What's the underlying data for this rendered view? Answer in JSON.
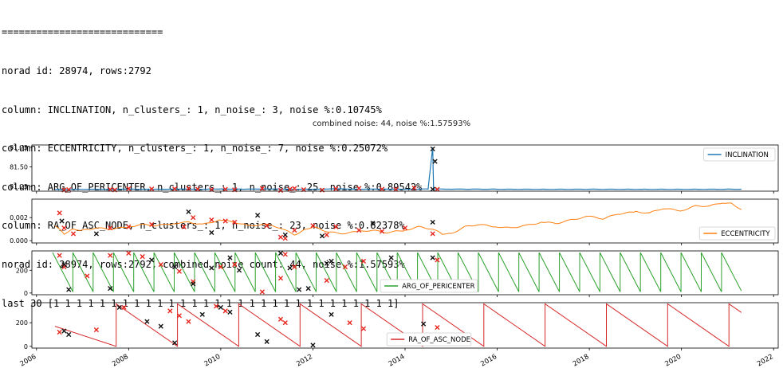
{
  "console": {
    "lines": [
      "============================",
      "norad id: 28974, rows:2792",
      "column: INCLINATION, n_clusters_: 1, n_noise_: 3, noise %:0.10745%",
      "column: ECCENTRICITY, n_clusters_: 1, n_noise_: 7, noise %:0.25072%",
      "column: ARG_OF_PERICENTER, n_clusters_: 1, n_noise_: 25, noise %:0.89542%",
      "column: RA_OF_ASC_NODE, n_clusters_: 1, n_noise_: 23, noise %:0.82378%",
      "norad id: 28974, rows:2792, combined noise count: 44, noise %:1.57593%",
      "last 30 [1 1 1 1 1 1 1 1 1 1 1 1 1 1 1 1 1 1 1 1 1 1 1 1 1 1 1 1 1 1]"
    ]
  },
  "chart_data": {
    "type": "line",
    "title": "combined noise: 44, noise %:1.57593%",
    "x_ticks": [
      "2006",
      "2008",
      "2010",
      "2012",
      "2014",
      "2016",
      "2018",
      "2020",
      "2022"
    ],
    "xlim": [
      2005.9,
      2022.1
    ],
    "panels": [
      {
        "series_name": "INCLINATION",
        "color": "#1f77b4",
        "legend": "upper right",
        "ylim": [
          81.19,
          81.78
        ],
        "y_ticks": [
          "81.25",
          "81.50",
          "81.75"
        ],
        "y_tick_values": [
          81.25,
          81.5,
          81.75
        ],
        "x": [
          2006.4,
          2007.0,
          2007.5,
          2008.0,
          2008.5,
          2009.0,
          2009.5,
          2010.0,
          2010.5,
          2011.0,
          2011.5,
          2012.0,
          2012.5,
          2013.0,
          2013.5,
          2014.0,
          2014.5,
          2014.6,
          2014.62,
          2014.64,
          2015.0,
          2016.0,
          2017.0,
          2018.0,
          2019.0,
          2020.0,
          2021.0,
          2021.3
        ],
        "y": [
          81.21,
          81.214,
          81.212,
          81.216,
          81.213,
          81.217,
          81.214,
          81.218,
          81.215,
          81.219,
          81.216,
          81.214,
          81.22,
          81.215,
          81.217,
          81.214,
          81.218,
          81.75,
          81.215,
          81.218,
          81.216,
          81.215,
          81.214,
          81.215,
          81.214,
          81.214,
          81.215,
          81.215
        ],
        "noise_red": {
          "x": [
            2006.6,
            2006.7,
            2007.6,
            2007.7,
            2008.0,
            2008.5,
            2009.0,
            2009.3,
            2009.5,
            2009.8,
            2010.1,
            2010.3,
            2010.9,
            2011.3,
            2011.5,
            2011.6,
            2011.8,
            2012.2,
            2012.5,
            2013.0,
            2013.5,
            2013.8,
            2014.2,
            2014.7
          ],
          "y": [
            81.205,
            81.21,
            81.212,
            81.206,
            81.222,
            81.218,
            81.22,
            81.225,
            81.216,
            81.21,
            81.214,
            81.208,
            81.225,
            81.2,
            81.214,
            81.225,
            81.21,
            81.204,
            81.22,
            81.226,
            81.216,
            81.212,
            81.23,
            81.214
          ]
        },
        "noise_black": {
          "x": [
            2014.6,
            2014.65,
            2014.6
          ],
          "y": [
            81.73,
            81.57,
            81.215
          ]
        }
      },
      {
        "series_name": "ECCENTRICITY",
        "color": "#ff7f0e",
        "legend": "lower right",
        "ylim": [
          -0.0002,
          0.0036
        ],
        "y_ticks": [
          "0.000",
          "0.002"
        ],
        "y_tick_values": [
          0.0,
          0.002
        ],
        "x": [
          2006.4,
          2006.6,
          2006.8,
          2007.0,
          2007.3,
          2007.6,
          2008.0,
          2008.3,
          2008.6,
          2009.0,
          2009.3,
          2009.6,
          2010.0,
          2010.3,
          2010.6,
          2011.0,
          2011.3,
          2011.6,
          2011.8,
          2012.0,
          2012.3,
          2012.6,
          2013.0,
          2013.3,
          2013.6,
          2014.0,
          2014.3,
          2014.6,
          2014.8,
          2015.0,
          2015.3,
          2015.6,
          2016.0,
          2016.3,
          2016.6,
          2017.0,
          2017.3,
          2017.6,
          2018.0,
          2018.3,
          2018.6,
          2019.0,
          2019.3,
          2019.6,
          2020.0,
          2020.3,
          2020.6,
          2020.9,
          2021.1,
          2021.3
        ],
        "y": [
          0.0013,
          0.0006,
          0.001,
          0.0009,
          0.0011,
          0.001,
          0.0012,
          0.0014,
          0.0013,
          0.0015,
          0.0016,
          0.0014,
          0.0018,
          0.0016,
          0.0013,
          0.0014,
          0.0011,
          0.0005,
          0.0009,
          0.0012,
          0.0008,
          0.0006,
          0.0008,
          0.0009,
          0.0007,
          0.0009,
          0.0012,
          0.001,
          0.0006,
          0.0006,
          0.0012,
          0.0014,
          0.0012,
          0.0011,
          0.0013,
          0.0016,
          0.0015,
          0.0018,
          0.0021,
          0.0019,
          0.0023,
          0.0025,
          0.0024,
          0.0028,
          0.0026,
          0.003,
          0.003,
          0.0033,
          0.0032,
          0.0027
        ],
        "noise_red": {
          "x": [
            2006.5,
            2006.6,
            2006.8,
            2007.6,
            2008.0,
            2008.5,
            2009.2,
            2009.4,
            2009.8,
            2010.1,
            2010.3,
            2011.0,
            2011.3,
            2011.4,
            2011.6,
            2012.0,
            2012.3,
            2012.5,
            2013.0,
            2013.5,
            2014.0,
            2014.6
          ],
          "y": [
            0.0024,
            0.0011,
            0.0006,
            0.0011,
            0.0012,
            0.0014,
            0.0012,
            0.002,
            0.0018,
            0.0017,
            0.0016,
            0.0013,
            0.0003,
            0.0002,
            0.0009,
            0.0013,
            0.0005,
            0.0012,
            0.0009,
            0.0008,
            0.0011,
            0.0006
          ]
        },
        "noise_black": {
          "x": [
            2006.55,
            2007.3,
            2009.3,
            2009.8,
            2010.8,
            2011.4,
            2012.2,
            2013.3,
            2014.6
          ],
          "y": [
            0.0017,
            0.0006,
            0.0025,
            0.0007,
            0.0022,
            0.0005,
            0.0004,
            0.0015,
            0.0016
          ]
        }
      },
      {
        "series_name": "ARG_OF_PERICENTER",
        "color": "#2ca02c",
        "legend": "lower center",
        "ylim": [
          -15,
          370
        ],
        "y_ticks": [
          "0",
          "200"
        ],
        "y_tick_values": [
          0,
          200
        ],
        "sawtooth": {
          "start": 2006.35,
          "end": 2021.3,
          "period": 0.44,
          "high": 355,
          "low": 10
        },
        "noise_red": {
          "x": [
            2006.5,
            2006.6,
            2007.1,
            2007.6,
            2008.0,
            2008.3,
            2008.7,
            2009.1,
            2009.4,
            2010.0,
            2010.3,
            2010.9,
            2011.3,
            2011.4,
            2011.6,
            2012.3,
            2012.7,
            2013.1,
            2014.7
          ],
          "y": [
            330,
            230,
            150,
            330,
            350,
            320,
            250,
            190,
            100,
            230,
            250,
            10,
            130,
            340,
            230,
            110,
            230,
            280,
            290
          ],
          "marker": "x"
        },
        "noise_black": {
          "x": [
            2006.6,
            2006.7,
            2007.6,
            2008.5,
            2009.0,
            2009.4,
            2009.8,
            2010.2,
            2010.4,
            2011.3,
            2011.5,
            2011.7,
            2011.9,
            2012.3,
            2012.4,
            2013.7,
            2014.6
          ],
          "y": [
            250,
            30,
            40,
            290,
            230,
            80,
            220,
            310,
            200,
            350,
            220,
            30,
            40,
            260,
            280,
            310,
            310
          ]
        }
      },
      {
        "series_name": "RA_OF_ASC_NODE",
        "color": "#d62728",
        "legend": "lower center",
        "ylim": [
          -15,
          370
        ],
        "y_ticks": [
          "0",
          "200"
        ],
        "y_tick_values": [
          0,
          200
        ],
        "sawtooth": {
          "start": 2006.4,
          "end": 2021.3,
          "period": 1.33,
          "high": 360,
          "low": 0,
          "start_value": 170
        },
        "noise_red": {
          "x": [
            2006.5,
            2007.3,
            2007.9,
            2008.9,
            2009.1,
            2009.3,
            2009.9,
            2010.1,
            2011.3,
            2011.4,
            2012.8,
            2013.1,
            2014.7
          ],
          "y": [
            120,
            140,
            330,
            300,
            260,
            210,
            340,
            300,
            230,
            200,
            200,
            150,
            160
          ],
          "marker": "x"
        },
        "noise_black": {
          "x": [
            2006.6,
            2006.7,
            2007.8,
            2008.4,
            2008.7,
            2009.0,
            2009.6,
            2010.0,
            2010.2,
            2010.8,
            2011.0,
            2012.0,
            2012.4,
            2014.4
          ],
          "y": [
            130,
            100,
            330,
            210,
            170,
            30,
            270,
            330,
            290,
            100,
            40,
            10,
            270,
            190
          ]
        }
      }
    ]
  }
}
